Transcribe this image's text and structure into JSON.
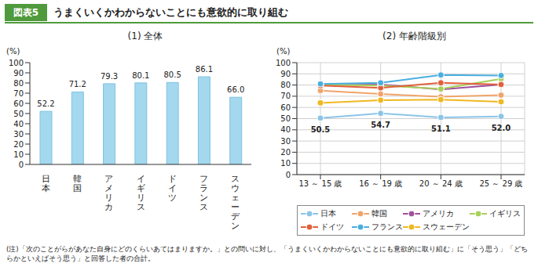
{
  "figure_label": "図表5",
  "title": "うまくいくかわからないことにも意欲的に取り組む",
  "note": "(注)「次のことがらがあなた自身にどのくらいあてはまりますか。」との問いに対し、「うまくいくかわからないことにも意欲的に取り組む」に「そう思う」「どちらかといえばそう思う」と回答した者の合計。",
  "chart_data": [
    {
      "type": "bar",
      "title": "(1) 全体",
      "y_label": "(%)",
      "categories": [
        "日本",
        "韓国",
        "アメリカ",
        "イギリス",
        "ドイツ",
        "フランス",
        "スウェーデン"
      ],
      "values": [
        52.2,
        71.2,
        79.3,
        80.1,
        80.5,
        86.1,
        66.0
      ],
      "value_labels": [
        "52.2",
        "71.2",
        "79.3",
        "80.1",
        "80.5",
        "86.1",
        "66.0"
      ],
      "color": "#a3d8ee",
      "ylim": [
        0,
        100
      ],
      "yticks": [
        0,
        10,
        20,
        30,
        40,
        50,
        60,
        70,
        80,
        90,
        100
      ],
      "grid": false,
      "data_labels": true
    },
    {
      "type": "line",
      "title": "(2) 年齢階級別",
      "y_label": "(%)",
      "categories": [
        "13 ～ 15 歳",
        "16 ～ 19 歳",
        "20 ～ 24 歳",
        "25 ～ 29 歳"
      ],
      "series": [
        {
          "name": "日本",
          "color": "#8cc4e8",
          "marker": "circle",
          "data_labels": true,
          "values": [
            50.5,
            54.7,
            51.1,
            52.0
          ],
          "value_labels": [
            "50.5",
            "54.7",
            "51.1",
            "52.0"
          ]
        },
        {
          "name": "韓国",
          "color": "#f0a46a",
          "marker": "circle",
          "values": [
            75.0,
            72.0,
            69.5,
            71.0
          ]
        },
        {
          "name": "アメリカ",
          "color": "#a0509c",
          "marker": "circle",
          "values": [
            80.0,
            80.5,
            76.0,
            80.5
          ]
        },
        {
          "name": "イギリス",
          "color": "#a8d05a",
          "marker": "circle",
          "values": [
            80.5,
            79.5,
            76.5,
            85.5
          ]
        },
        {
          "name": "ドイツ",
          "color": "#e0603c",
          "marker": "circle",
          "values": [
            79.5,
            77.5,
            82.0,
            80.5
          ]
        },
        {
          "name": "フランス",
          "color": "#4aaee0",
          "marker": "circle",
          "values": [
            81.0,
            82.0,
            89.0,
            88.5
          ]
        },
        {
          "name": "スウェーデン",
          "color": "#f0b820",
          "marker": "circle",
          "values": [
            64.0,
            66.5,
            67.0,
            65.0
          ]
        }
      ],
      "ylim": [
        0,
        100
      ],
      "yticks": [
        0,
        10,
        20,
        30,
        40,
        50,
        60,
        70,
        80,
        90,
        100
      ],
      "grid": true,
      "legend": "bottom"
    }
  ]
}
